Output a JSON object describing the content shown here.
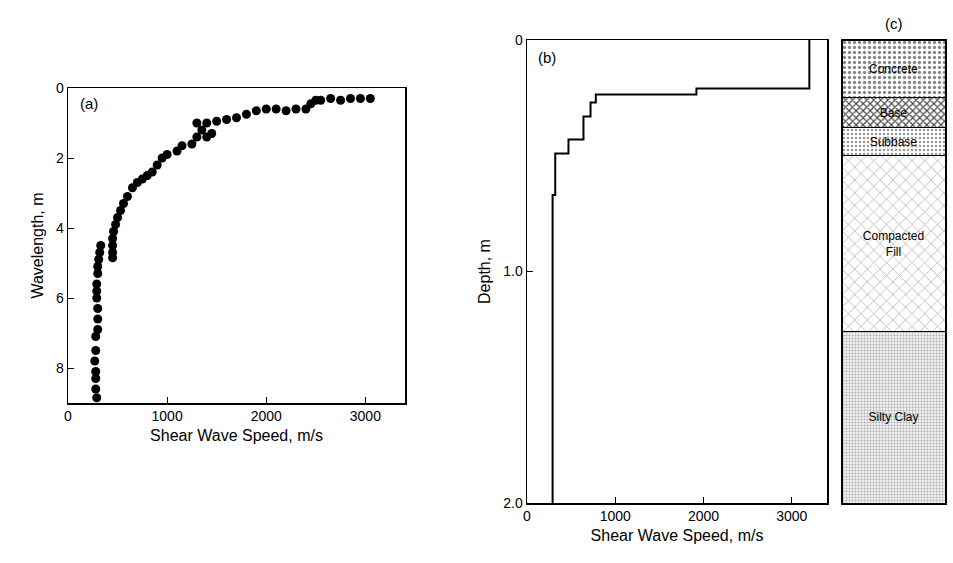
{
  "chart_data": [
    {
      "type": "scatter",
      "title": "(a)",
      "x_label": "Shear Wave Speed, m/s",
      "y_label": "Wavelength, m",
      "x": [
        3050,
        2950,
        2850,
        2750,
        2650,
        2550,
        2500,
        2450,
        2400,
        2300,
        2200,
        2100,
        2000,
        1900,
        1800,
        1700,
        1600,
        1500,
        1400,
        1300,
        1350,
        1450,
        1400,
        1300,
        1250,
        1150,
        1100,
        1000,
        950,
        900,
        850,
        800,
        750,
        700,
        650,
        600,
        560,
        530,
        500,
        480,
        460,
        450,
        450,
        450,
        450,
        330,
        320,
        310,
        300,
        300,
        290,
        290,
        290,
        300,
        300,
        300,
        280,
        280,
        270,
        280,
        280,
        280,
        290
      ],
      "y": [
        0.3,
        0.3,
        0.3,
        0.35,
        0.3,
        0.35,
        0.35,
        0.45,
        0.6,
        0.6,
        0.65,
        0.6,
        0.6,
        0.65,
        0.75,
        0.85,
        0.9,
        0.95,
        1.0,
        1.0,
        1.2,
        1.3,
        1.4,
        1.4,
        1.6,
        1.65,
        1.8,
        1.9,
        2.0,
        2.2,
        2.4,
        2.5,
        2.6,
        2.7,
        2.85,
        3.1,
        3.3,
        3.5,
        3.7,
        3.9,
        4.1,
        4.3,
        4.5,
        4.7,
        4.85,
        4.5,
        4.7,
        4.9,
        5.1,
        5.3,
        5.6,
        5.8,
        6.0,
        6.3,
        6.6,
        6.9,
        7.1,
        7.5,
        7.8,
        8.1,
        8.3,
        8.6,
        8.85
      ],
      "color": "#000000",
      "marker": "circle",
      "xlim": [
        0,
        3400
      ],
      "xticks": [
        0,
        1000,
        2000,
        3000
      ],
      "ylim": [
        9,
        0
      ],
      "yticks": [
        0,
        2,
        4,
        6,
        8
      ]
    },
    {
      "type": "line",
      "title": "(b)",
      "x_label": "Shear Wave Speed, m/s",
      "y_label": "Depth, m",
      "x": [
        3200,
        3200,
        1920,
        1920,
        780,
        780,
        720,
        720,
        640,
        640,
        470,
        470,
        320,
        320,
        290,
        290
      ],
      "y": [
        0,
        0.21,
        0.21,
        0.235,
        0.235,
        0.27,
        0.27,
        0.33,
        0.33,
        0.43,
        0.43,
        0.49,
        0.49,
        0.67,
        0.67,
        2.0
      ],
      "color": "#000000",
      "line_style": "solid",
      "xlim": [
        0,
        3400
      ],
      "xticks": [
        0,
        1000,
        2000,
        3000
      ],
      "ylim": [
        2.0,
        0
      ],
      "yticks": [
        0,
        {
          "value": 1,
          "label": "1.0"
        },
        {
          "value": 2,
          "label": "2.0"
        }
      ]
    },
    {
      "type": "column",
      "title": "(c)",
      "categories": [
        "Concrete",
        "Base",
        "Subbase",
        "Compacted Fill",
        "Silty Clay"
      ],
      "values": [
        0.25,
        0.13,
        0.12,
        0.76,
        0.74
      ],
      "stacked": true,
      "ylim": [
        2.0,
        0
      ],
      "tick_labels": false
    }
  ]
}
